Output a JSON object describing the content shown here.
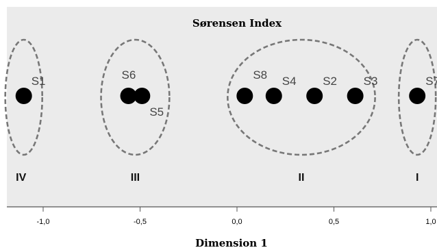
{
  "chart_data": {
    "type": "scatter",
    "title": "Sørensen Index",
    "xlabel": "Dimension 1",
    "ylabel": "",
    "xlim": [
      -1.2,
      1.02
    ],
    "xticks": [
      {
        "value": -1.0,
        "label": "-1,0"
      },
      {
        "value": -0.5,
        "label": "-0,5"
      },
      {
        "value": 0.0,
        "label": "0,0"
      },
      {
        "value": 0.5,
        "label": "0,5"
      },
      {
        "value": 1.0,
        "label": "1,0"
      }
    ],
    "grid": false,
    "background_color": "#ebebeb",
    "point_color": "#000000",
    "ellipse_color": "#777777",
    "points": [
      {
        "label": "S1",
        "x": -1.1
      },
      {
        "label": "S6",
        "x": -0.56
      },
      {
        "label": "S5",
        "x": -0.49
      },
      {
        "label": "S8",
        "x": 0.04
      },
      {
        "label": "S4",
        "x": 0.19
      },
      {
        "label": "S2",
        "x": 0.4
      },
      {
        "label": "S3",
        "x": 0.61
      },
      {
        "label": "S7",
        "x": 0.93
      }
    ],
    "groups": [
      {
        "label": "IV",
        "members": [
          "S1"
        ]
      },
      {
        "label": "III",
        "members": [
          "S6",
          "S5"
        ]
      },
      {
        "label": "II",
        "members": [
          "S8",
          "S4",
          "S2",
          "S3"
        ]
      },
      {
        "label": "I",
        "members": [
          "S7"
        ]
      }
    ]
  }
}
